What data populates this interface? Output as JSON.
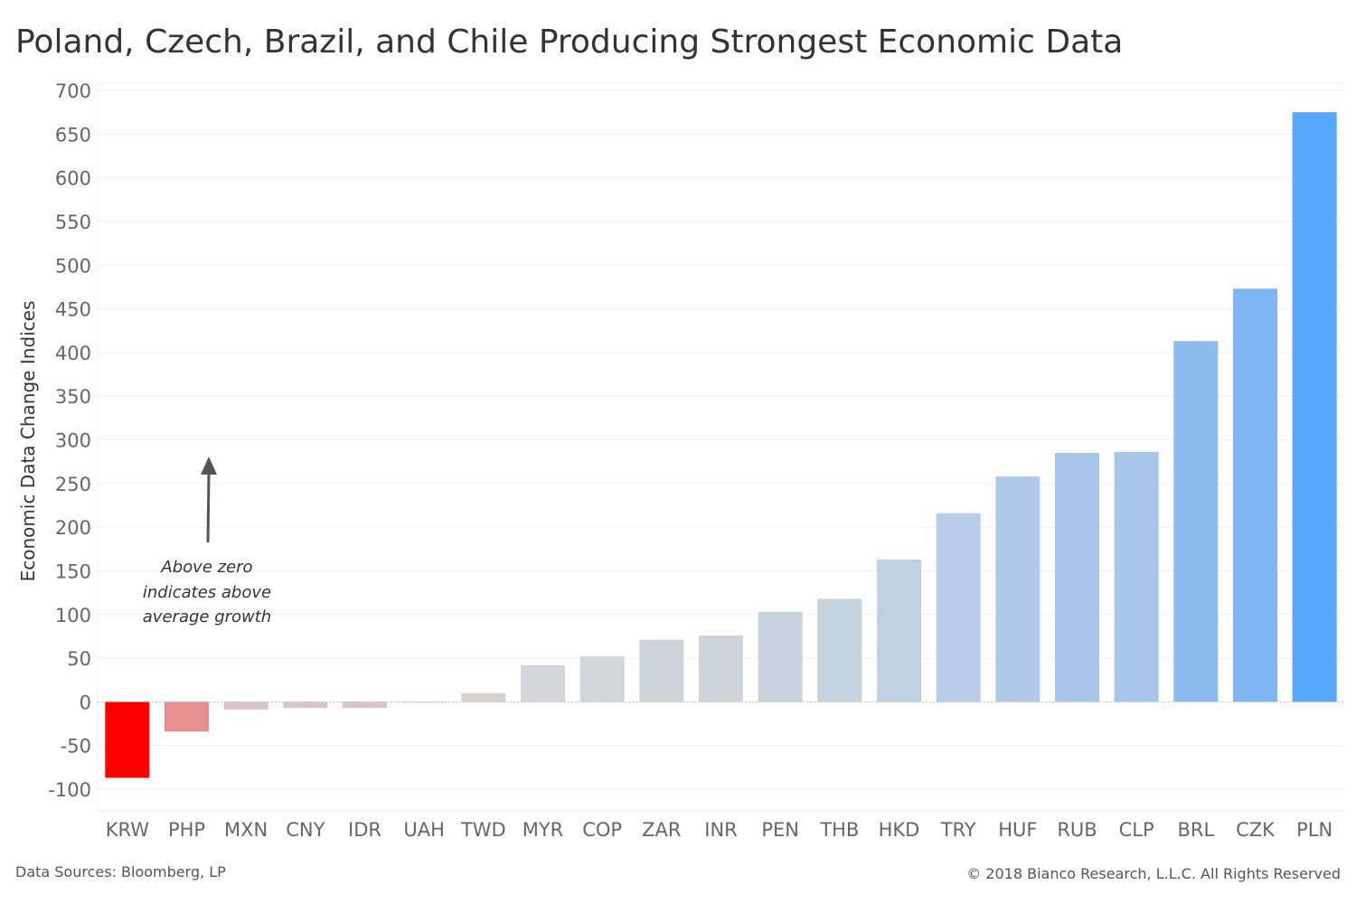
{
  "chart_data": {
    "type": "bar",
    "title": "Poland, Czech, Brazil, and Chile Producing Strongest Economic Data",
    "xlabel": "",
    "ylabel": "Economic Data Change Indices",
    "ylim": [
      -100,
      700
    ],
    "yticks": [
      -100,
      -50,
      0,
      50,
      100,
      150,
      200,
      250,
      300,
      350,
      400,
      450,
      500,
      550,
      600,
      650,
      700
    ],
    "grid": true,
    "categories": [
      "KRW",
      "PHP",
      "MXN",
      "CNY",
      "IDR",
      "UAH",
      "TWD",
      "MYR",
      "COP",
      "ZAR",
      "INR",
      "PEN",
      "THB",
      "HKD",
      "TRY",
      "HUF",
      "RUB",
      "CLP",
      "BRL",
      "CZK",
      "PLN"
    ],
    "values": [
      -87,
      -34,
      -9,
      -7,
      -7,
      -1,
      10,
      42,
      52,
      71,
      76,
      103,
      118,
      163,
      216,
      258,
      285,
      286,
      413,
      473,
      675
    ],
    "colors": [
      "#ff0000",
      "#e89090",
      "#dcc4c4",
      "#dcc4c4",
      "#dcc4c4",
      "#dcd0d0",
      "#dad0d0",
      "#d3d5da",
      "#d1d5db",
      "#ced4db",
      "#cdd4dc",
      "#c8d3df",
      "#c5d2e0",
      "#c0d1e4",
      "#b8cde8",
      "#b0c9ea",
      "#a8c6ec",
      "#a8c6ec",
      "#8bbcef",
      "#7db6f2",
      "#57a7fc"
    ],
    "annotation": {
      "lines": [
        "Above zero",
        "indicates above",
        "average growth"
      ],
      "arrow_color": "#555555"
    }
  },
  "footer": {
    "source": "Data Sources: Bloomberg, LP",
    "copyright": "© 2018 Bianco Research, L.L.C. All Rights Reserved"
  }
}
